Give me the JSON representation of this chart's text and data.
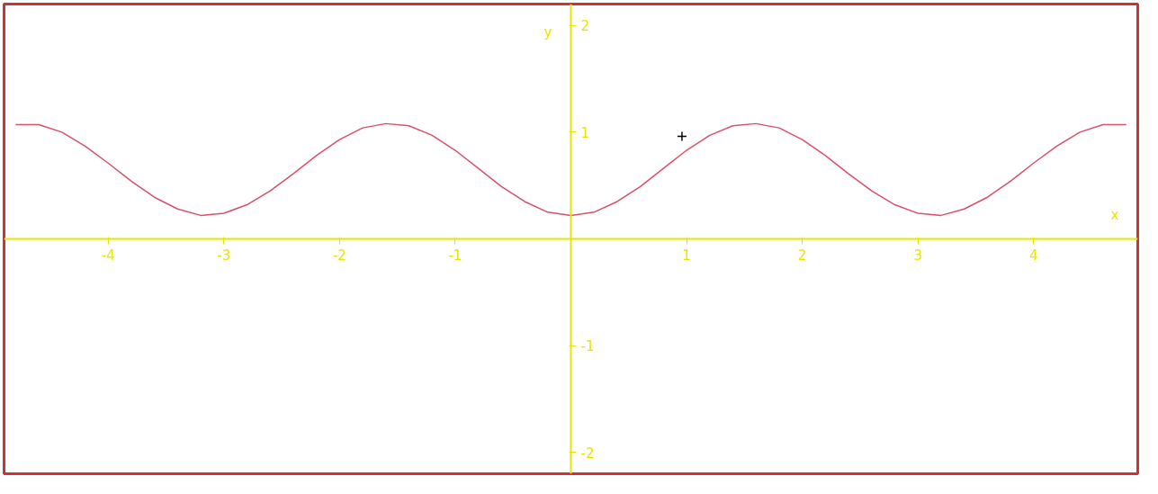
{
  "chart_data": {
    "type": "line",
    "xlabel": "x",
    "ylabel": "y",
    "xlim": [
      -4.9,
      4.9
    ],
    "ylim": [
      -2.2,
      2.2
    ],
    "xticks": [
      -4,
      -3,
      -2,
      -1,
      1,
      2,
      3,
      4
    ],
    "yticks": [
      -2,
      -1,
      1,
      2
    ],
    "grid": false,
    "series": [
      {
        "color": "#d9506a",
        "marker": "none",
        "x": [
          -4.8,
          -4.6,
          -4.4,
          -4.2,
          -4.0,
          -3.8,
          -3.6,
          -3.4,
          -3.2,
          -3.0,
          -2.8,
          -2.6,
          -2.4,
          -2.2,
          -2.0,
          -1.8,
          -1.6,
          -1.4,
          -1.2,
          -1.0,
          -0.8,
          -0.6,
          -0.4,
          -0.2,
          0,
          0.2,
          0.4,
          0.6,
          0.8,
          1.0,
          1.2,
          1.4,
          1.6,
          1.8,
          2.0,
          2.2,
          2.4,
          2.6,
          2.8,
          3.0,
          3.2,
          3.4,
          3.6,
          3.8,
          4.0,
          4.2,
          4.4,
          4.6,
          4.8
        ],
        "values": [
          1.07,
          1.07,
          1.0,
          0.87,
          0.71,
          0.54,
          0.39,
          0.28,
          0.22,
          0.24,
          0.32,
          0.45,
          0.61,
          0.78,
          0.93,
          1.04,
          1.08,
          1.06,
          0.97,
          0.83,
          0.66,
          0.49,
          0.35,
          0.25,
          0.22,
          0.25,
          0.35,
          0.49,
          0.66,
          0.83,
          0.97,
          1.06,
          1.08,
          1.04,
          0.93,
          0.78,
          0.61,
          0.45,
          0.32,
          0.24,
          0.22,
          0.28,
          0.39,
          0.54,
          0.71,
          0.87,
          1.0,
          1.07,
          1.07
        ]
      },
      {
        "type": "scatter",
        "color": "#000000",
        "marker": "cross",
        "x": [
          0.96
        ],
        "values": [
          0.96
        ]
      }
    ]
  }
}
